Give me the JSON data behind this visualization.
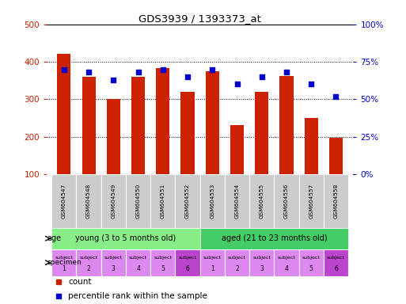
{
  "title": "GDS3939 / 1393373_at",
  "samples": [
    "GSM604547",
    "GSM604548",
    "GSM604549",
    "GSM604550",
    "GSM604551",
    "GSM604552",
    "GSM604553",
    "GSM604554",
    "GSM604555",
    "GSM604556",
    "GSM604557",
    "GSM604558"
  ],
  "counts": [
    422,
    360,
    300,
    360,
    383,
    320,
    375,
    232,
    320,
    363,
    250,
    197
  ],
  "percentiles": [
    70,
    68,
    63,
    68,
    70,
    65,
    70,
    60,
    65,
    68,
    60,
    52
  ],
  "ylim_left": [
    100,
    500
  ],
  "ylim_right": [
    0,
    100
  ],
  "yticks_left": [
    100,
    200,
    300,
    400,
    500
  ],
  "yticks_right": [
    0,
    25,
    50,
    75,
    100
  ],
  "bar_color": "#cc2200",
  "dot_color": "#0000cc",
  "age_young_label": "young (3 to 5 months old)",
  "age_aged_label": "aged (21 to 23 months old)",
  "age_young_color": "#88ee88",
  "age_aged_color": "#44cc66",
  "spec_color_normal": "#dd88ee",
  "spec_color_dark": "#bb44cc",
  "background_color": "#ffffff",
  "young_count": 6,
  "aged_count": 6,
  "bar_width": 0.55,
  "gsm_bg_color": "#cccccc"
}
